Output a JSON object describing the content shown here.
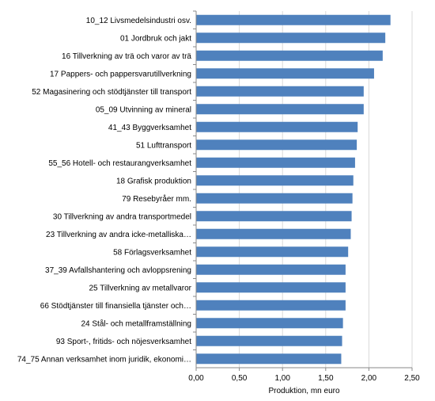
{
  "chart_data": {
    "type": "bar",
    "orientation": "horizontal",
    "xlabel": "Produktion, mn euro",
    "xlim": [
      0,
      2.5
    ],
    "xticks": [
      "0,00",
      "0,50",
      "1,00",
      "1,50",
      "2,00",
      "2,50"
    ],
    "grid": true,
    "bar_color": "#4f81bd",
    "categories": [
      "10_12 Livsmedelsindustri osv.",
      "01 Jordbruk och jakt",
      "16 Tillverkning av trä och varor av trä",
      "17 Pappers- och pappersvarutillverkning",
      "52 Magasinering och stödtjänster till transport",
      "05_09 Utvinning av mineral",
      "41_43 Byggverksamhet",
      "51 Lufttransport",
      "55_56 Hotell- och restaurangverksamhet",
      "18 Grafisk produktion",
      "79 Resebyråer mm.",
      "30 Tillverkning av andra transportmedel",
      "23 Tillverkning av andra icke-metalliska…",
      "58 Förlagsverksamhet",
      "37_39 Avfallshantering och avloppsrening",
      "25 Tillverkning av metallvaror",
      "66 Stödtjänster till finansiella tjänster och…",
      "24 Stål- och metallframställning",
      "93 Sport-, fritids- och nöjesverksamhet",
      "74_75 Annan verksamhet inom juridik, ekonomi…"
    ],
    "values": [
      2.25,
      2.19,
      2.16,
      2.06,
      1.94,
      1.94,
      1.87,
      1.86,
      1.84,
      1.82,
      1.81,
      1.8,
      1.79,
      1.76,
      1.73,
      1.73,
      1.73,
      1.7,
      1.69,
      1.68
    ]
  }
}
